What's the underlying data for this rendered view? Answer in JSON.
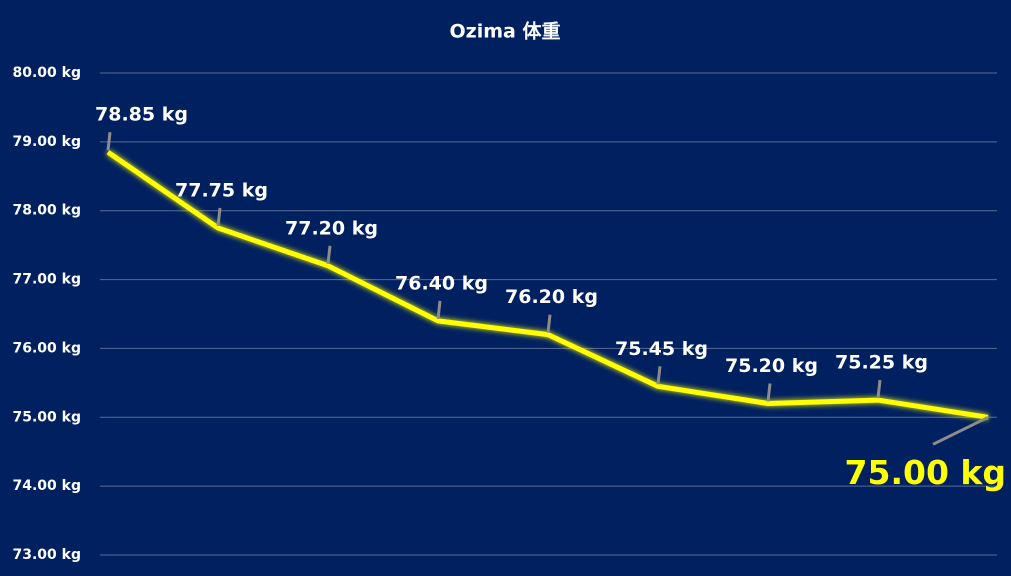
{
  "chart_data": {
    "type": "line",
    "title": "Ozima 体重",
    "values": [
      78.85,
      77.75,
      77.2,
      76.4,
      76.2,
      75.45,
      75.2,
      75.25,
      75.0
    ],
    "value_labels": [
      "78.85 kg",
      "77.75 kg",
      "77.20 kg",
      "76.40 kg",
      "76.20 kg",
      "75.45 kg",
      "75.20 kg",
      "75.25 kg",
      "75.00 kg"
    ],
    "color": "#ffff00",
    "ylim": [
      73,
      80
    ],
    "yticks": [
      {
        "value": 73,
        "label": "73.00 kg"
      },
      {
        "value": 74,
        "label": "74.00 kg"
      },
      {
        "value": 75,
        "label": "75.00 kg"
      },
      {
        "value": 76,
        "label": "76.00 kg"
      },
      {
        "value": 77,
        "label": "77.00 kg"
      },
      {
        "value": 78,
        "label": "78.00 kg"
      },
      {
        "value": 79,
        "label": "79.00 kg"
      },
      {
        "value": 80,
        "label": "80.00 kg"
      }
    ],
    "grid": true
  }
}
